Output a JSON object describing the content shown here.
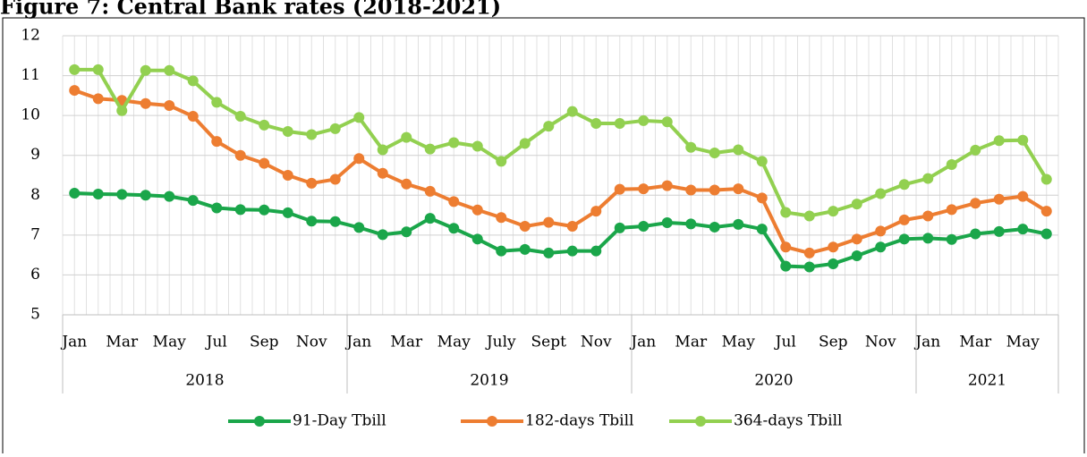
{
  "chart_data": {
    "type": "line",
    "title": "Figure 7: Central Bank rates (2018-2021)",
    "categories": [
      "Jan",
      null,
      "Mar",
      null,
      "May",
      null,
      "Jul",
      null,
      "Sep",
      null,
      "Nov",
      null,
      "Jan",
      null,
      "Mar",
      null,
      "May",
      null,
      "July",
      null,
      "Sept",
      null,
      "Nov",
      null,
      "Jan",
      null,
      "Mar",
      null,
      "May",
      null,
      "Jul",
      null,
      "Sep",
      null,
      "Nov",
      null,
      "Jan",
      null,
      "Mar",
      null,
      "May",
      null
    ],
    "year_groups": [
      {
        "label": "2018",
        "size": 12
      },
      {
        "label": "2019",
        "size": 12
      },
      {
        "label": "2020",
        "size": 12
      },
      {
        "label": "2021",
        "size": 6
      }
    ],
    "series": [
      {
        "name": "91-Day Tbill",
        "color": "#1aa64a",
        "values": [
          8.05,
          8.03,
          8.02,
          8.0,
          7.97,
          7.87,
          7.68,
          7.64,
          7.63,
          7.56,
          7.35,
          7.34,
          7.19,
          7.01,
          7.08,
          7.42,
          7.17,
          6.9,
          6.6,
          6.64,
          6.55,
          6.6,
          6.6,
          7.18,
          7.22,
          7.31,
          7.28,
          7.2,
          7.27,
          7.15,
          6.22,
          6.2,
          6.28,
          6.48,
          6.7,
          6.9,
          6.92,
          6.89,
          7.03,
          7.09,
          7.15,
          7.03
        ]
      },
      {
        "name": "182-days Tbill",
        "color": "#ed7d31",
        "values": [
          10.63,
          10.42,
          10.38,
          10.3,
          10.25,
          9.98,
          9.35,
          9.0,
          8.8,
          8.5,
          8.3,
          8.4,
          8.92,
          8.55,
          8.28,
          8.1,
          7.84,
          7.63,
          7.44,
          7.22,
          7.32,
          7.22,
          7.6,
          8.15,
          8.16,
          8.24,
          8.13,
          8.13,
          8.16,
          7.93,
          6.7,
          6.55,
          6.7,
          6.9,
          7.1,
          7.38,
          7.48,
          7.64,
          7.8,
          7.9,
          7.97,
          7.6
        ]
      },
      {
        "name": "364-days Tbill",
        "color": "#92d050",
        "values": [
          11.15,
          11.15,
          10.12,
          11.13,
          11.13,
          10.87,
          10.33,
          9.98,
          9.76,
          9.6,
          9.52,
          9.67,
          9.95,
          9.14,
          9.45,
          9.16,
          9.32,
          9.23,
          8.85,
          9.3,
          9.73,
          10.1,
          9.8,
          9.8,
          9.87,
          9.84,
          9.2,
          9.06,
          9.14,
          8.85,
          7.57,
          7.48,
          7.6,
          7.78,
          8.04,
          8.27,
          8.42,
          8.77,
          9.13,
          9.37,
          9.38,
          8.4
        ]
      }
    ],
    "ylim": [
      5,
      12
    ],
    "yticks": [
      5,
      6,
      7,
      8,
      9,
      10,
      11,
      12
    ],
    "grid": true,
    "legend": "bottom"
  }
}
